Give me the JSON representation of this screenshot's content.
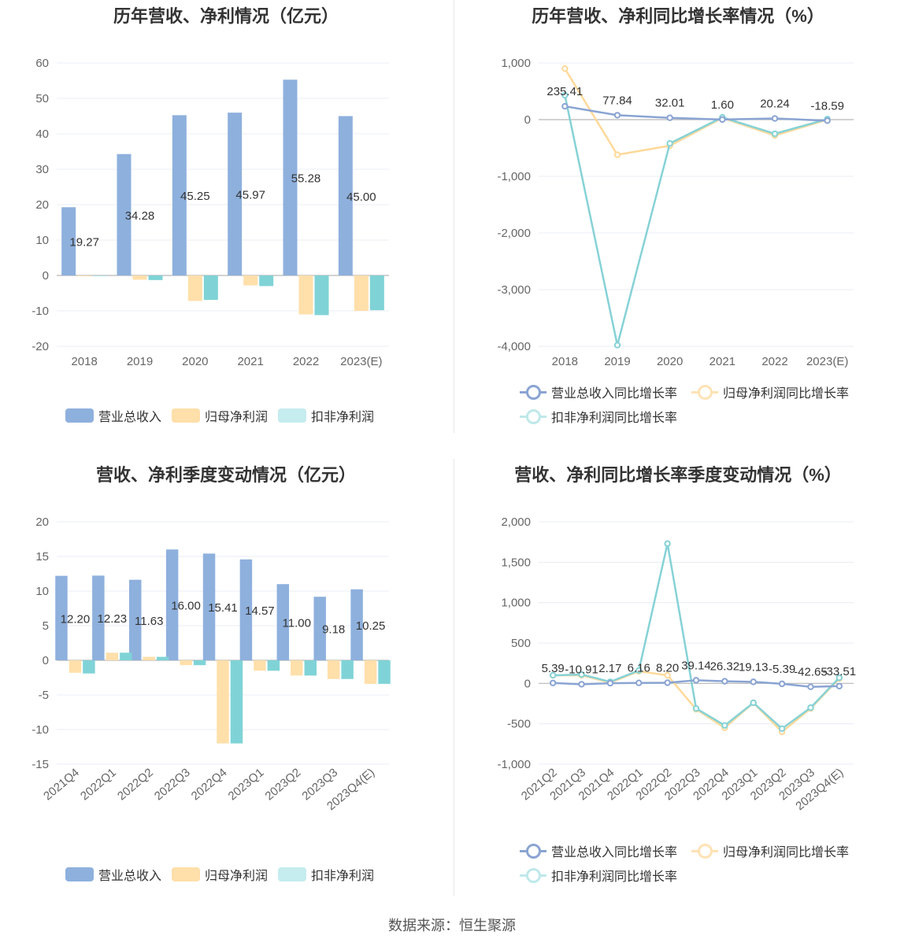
{
  "colors": {
    "revenue": "#8eb0dd",
    "net_profit": "#ffdfaa",
    "deducted_profit": "#7fd3d6",
    "revenue_line": "#8aa4d3",
    "net_profit_line": "#ffd99a",
    "deducted_line": "#86d2d6",
    "grid": "#e8ecf5",
    "axis": "#b8b8b8"
  },
  "source": "数据来源：恒生聚源",
  "chart_data": [
    {
      "id": "annual_amount",
      "type": "bar",
      "title": "历年营收、净利情况（亿元）",
      "categories": [
        "2018",
        "2019",
        "2020",
        "2021",
        "2022",
        "2023(E)"
      ],
      "ylim": [
        -20,
        60
      ],
      "yticks": [
        60,
        50,
        40,
        30,
        20,
        10,
        0,
        -10,
        -20
      ],
      "grid": true,
      "legend_position": "bottom",
      "series": [
        {
          "name": "营业总收入",
          "values": [
            19.27,
            34.28,
            45.25,
            45.97,
            55.28,
            45.0
          ],
          "labels": [
            "19.27",
            "34.28",
            "45.25",
            "45.97",
            "55.28",
            "45.00"
          ]
        },
        {
          "name": "归母净利润",
          "values": [
            -0.2,
            -1.2,
            -7.2,
            -2.8,
            -11.0,
            -10.0
          ]
        },
        {
          "name": "扣非净利润",
          "values": [
            0,
            -1.3,
            -6.9,
            -3.0,
            -11.2,
            -9.8
          ]
        }
      ]
    },
    {
      "id": "annual_growth",
      "type": "line",
      "title": "历年营收、净利同比增长率情况（%）",
      "categories": [
        "2018",
        "2019",
        "2020",
        "2021",
        "2022",
        "2023(E)"
      ],
      "ylim": [
        -4000,
        1000
      ],
      "yticks": [
        1000,
        0,
        -1000,
        -2000,
        -3000,
        -4000
      ],
      "ytick_labels": [
        "1,000",
        "0",
        "-1,000",
        "-2,000",
        "-3,000",
        "-4,000"
      ],
      "grid": true,
      "legend_position": "bottom",
      "series": [
        {
          "name": "营业总收入同比增长率",
          "values": [
            235.41,
            77.84,
            32.01,
            1.6,
            20.24,
            -18.59
          ],
          "labels": [
            "235.41",
            "77.84",
            "32.01",
            "1.60",
            "20.24",
            "-18.59"
          ]
        },
        {
          "name": "归母净利润同比增长率",
          "values": [
            900,
            -620,
            -460,
            30,
            -280,
            0
          ]
        },
        {
          "name": "扣非净利润同比增长率",
          "values": [
            430,
            -3980,
            -420,
            40,
            -250,
            10
          ]
        }
      ]
    },
    {
      "id": "quarterly_amount",
      "type": "bar",
      "title": "营收、净利季度变动情况（亿元）",
      "categories": [
        "2021Q4",
        "2022Q1",
        "2022Q2",
        "2022Q3",
        "2022Q4",
        "2023Q1",
        "2023Q2",
        "2023Q3",
        "2023Q4(E)"
      ],
      "ylim": [
        -15,
        20
      ],
      "yticks": [
        20,
        15,
        10,
        5,
        0,
        -5,
        -10,
        -15
      ],
      "grid": true,
      "legend_position": "bottom",
      "series": [
        {
          "name": "营业总收入",
          "values": [
            12.2,
            12.23,
            11.63,
            16.0,
            15.41,
            14.57,
            11.0,
            9.18,
            10.25
          ],
          "labels": [
            "12.20",
            "12.23",
            "11.63",
            "16.00",
            "15.41",
            "14.57",
            "11.00",
            "9.18",
            "10.25"
          ]
        },
        {
          "name": "归母净利润",
          "values": [
            -1.8,
            1.1,
            0.5,
            -0.7,
            -12.0,
            -1.5,
            -2.2,
            -2.7,
            -3.4
          ]
        },
        {
          "name": "扣非净利润",
          "values": [
            -1.9,
            1.1,
            0.5,
            -0.7,
            -12.0,
            -1.5,
            -2.2,
            -2.7,
            -3.4
          ]
        }
      ]
    },
    {
      "id": "quarterly_growth",
      "type": "line",
      "title": "营收、净利同比增长率季度变动情况（%）",
      "categories": [
        "2021Q2",
        "2021Q3",
        "2021Q4",
        "2022Q1",
        "2022Q2",
        "2022Q3",
        "2022Q4",
        "2023Q1",
        "2023Q2",
        "2023Q3",
        "2023Q4(E)"
      ],
      "ylim": [
        -1000,
        2000
      ],
      "yticks": [
        2000,
        1500,
        1000,
        500,
        0,
        -500,
        -1000
      ],
      "ytick_labels": [
        "2,000",
        "1,500",
        "1,000",
        "500",
        "0",
        "-500",
        "-1,000"
      ],
      "grid": true,
      "legend_position": "bottom",
      "series": [
        {
          "name": "营业总收入同比增长率",
          "values": [
            5.39,
            -10.91,
            2.17,
            6.16,
            8.2,
            39.14,
            26.32,
            19.13,
            -5.39,
            -42.65,
            -33.51
          ],
          "labels": [
            "5.39",
            "-10.91",
            "2.17",
            "6.16",
            "8.20",
            "39.14",
            "26.32",
            "19.13",
            "-5.39",
            "-42.65",
            "-33.51"
          ]
        },
        {
          "name": "归母净利润同比增长率",
          "values": [
            100,
            100,
            10,
            150,
            100,
            -320,
            -550,
            -240,
            -600,
            -310,
            60
          ]
        },
        {
          "name": "扣非净利润同比增长率",
          "values": [
            100,
            110,
            20,
            160,
            1730,
            -310,
            -520,
            -240,
            -560,
            -300,
            70
          ]
        }
      ]
    }
  ]
}
